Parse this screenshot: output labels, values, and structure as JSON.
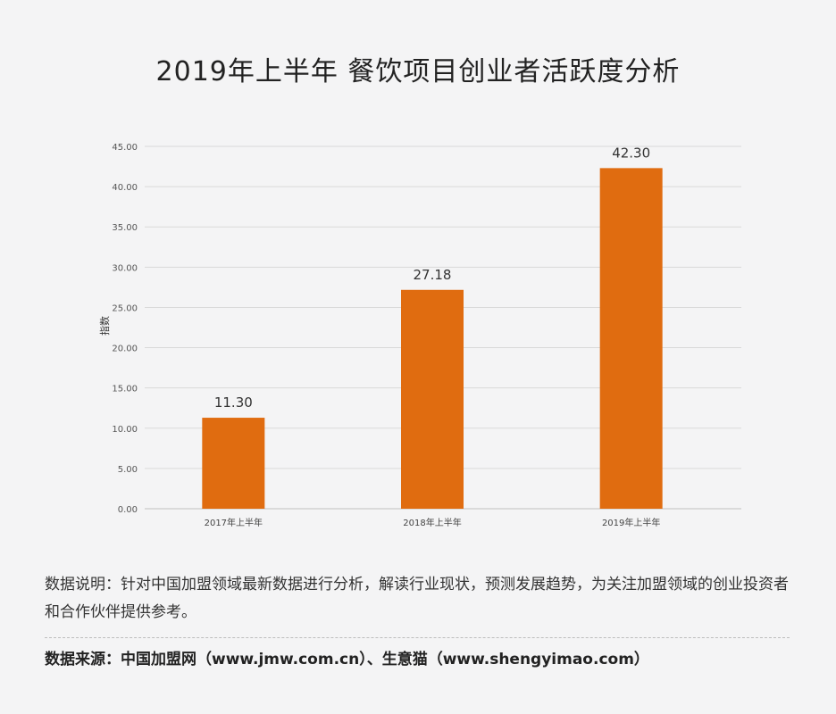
{
  "title": "2019年上半年  餐饮项目创业者活跃度分析",
  "note": "数据说明：针对中国加盟领域最新数据进行分析，解读行业现状，预测发展趋势，为关注加盟领域的创业投资者和合作伙伴提供参考。",
  "source": "数据来源：中国加盟网（www.jmw.com.cn）、生意猫（www.shengyimao.com）",
  "chart_data": {
    "type": "bar",
    "title": "2019年上半年  餐饮项目创业者活跃度分析",
    "xlabel": "",
    "ylabel": "指数",
    "categories": [
      "2017年上半年",
      "2018年上半年",
      "2019年上半年"
    ],
    "values": [
      11.3,
      27.18,
      42.3
    ],
    "value_labels": [
      "11.30",
      "27.18",
      "42.30"
    ],
    "ylim": [
      0,
      45
    ],
    "yticks": [
      "0.00",
      "5.00",
      "10.00",
      "15.00",
      "20.00",
      "25.00",
      "30.00",
      "35.00",
      "40.00",
      "45.00"
    ],
    "grid": true,
    "bar_color": "#e06c10"
  }
}
